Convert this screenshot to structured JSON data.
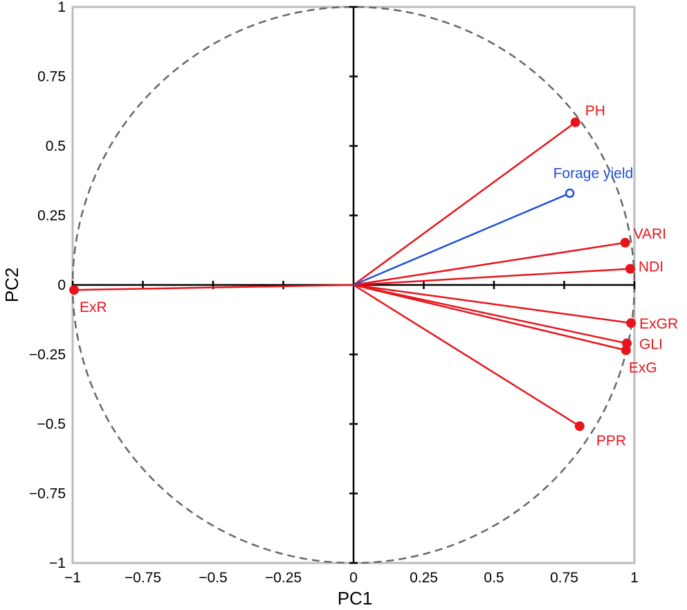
{
  "chart_data": {
    "type": "scatter",
    "subtype": "pca-correlation-circle",
    "title": "",
    "xlabel": "PC1",
    "ylabel": "PC2",
    "xlim": [
      -1,
      1
    ],
    "ylim": [
      -1,
      1
    ],
    "xticks": [
      {
        "value": -1,
        "label": "−1"
      },
      {
        "value": -0.75,
        "label": "−0.75"
      },
      {
        "value": -0.5,
        "label": "−0.5"
      },
      {
        "value": -0.25,
        "label": "−0.25"
      },
      {
        "value": 0,
        "label": "0"
      },
      {
        "value": 0.25,
        "label": "0.25"
      },
      {
        "value": 0.5,
        "label": "0.5"
      },
      {
        "value": 0.75,
        "label": "0.75"
      },
      {
        "value": 1,
        "label": "1"
      }
    ],
    "yticks": [
      {
        "value": -1,
        "label": "−1"
      },
      {
        "value": -0.75,
        "label": "−0.75"
      },
      {
        "value": -0.5,
        "label": "−0.5"
      },
      {
        "value": -0.25,
        "label": "−0.25"
      },
      {
        "value": 0,
        "label": "0"
      },
      {
        "value": 0.25,
        "label": "0.25"
      },
      {
        "value": 0.5,
        "label": "0.5"
      },
      {
        "value": 0.75,
        "label": "0.75"
      },
      {
        "value": 1,
        "label": "1"
      }
    ],
    "unit_circle": true,
    "grid": false,
    "colors": {
      "active": "#e8141b",
      "supplementary": "#1f4fd8",
      "circle": "#666666",
      "frame": "#bbbbbb"
    },
    "series": [
      {
        "group": "active",
        "points": [
          {
            "label": "PH",
            "x": 0.79,
            "y": 0.585
          },
          {
            "label": "VARI",
            "x": 0.967,
            "y": 0.152
          },
          {
            "label": "NDI",
            "x": 0.985,
            "y": 0.058
          },
          {
            "label": "ExGR",
            "x": 0.988,
            "y": -0.137
          },
          {
            "label": "GLI",
            "x": 0.973,
            "y": -0.21
          },
          {
            "label": "ExG",
            "x": 0.97,
            "y": -0.235
          },
          {
            "label": "PPR",
            "x": 0.805,
            "y": -0.508
          },
          {
            "label": "ExR",
            "x": -0.995,
            "y": -0.018
          }
        ]
      },
      {
        "group": "supplementary",
        "points": [
          {
            "label": "Forage yield",
            "x": 0.77,
            "y": 0.33
          }
        ]
      }
    ]
  }
}
